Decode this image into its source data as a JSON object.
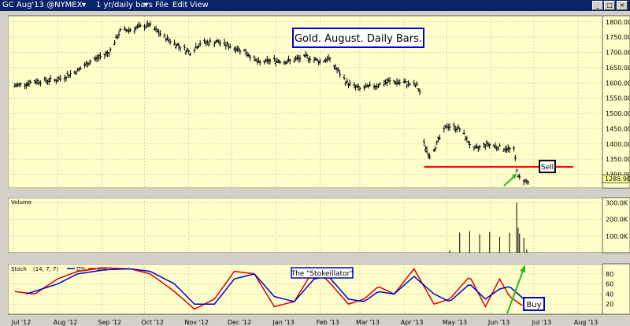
{
  "window": {
    "symbol": "GC Aug'13 @NYMEX",
    "period": "1 yr/daily bars",
    "menu": [
      "File",
      "Edit",
      "View"
    ]
  },
  "colors": {
    "panel_bg": "#ffffcc",
    "grid": "#c9c6a6",
    "price_bars": "#000000",
    "support_line": "#ff0000",
    "arrow": "#22bb22",
    "stoch_k": "#dd0000",
    "stoch_d": "#0000cc",
    "annotation_border": "#0000cc",
    "price_tag_bg": "#ffff99"
  },
  "chart_data": [
    {
      "type": "line",
      "subtype": "ohlc-bars",
      "title": "Gold. August. Daily Bars.",
      "x_tick_labels": [
        "Jul '12",
        "Aug '12",
        "Sep '12",
        "Oct '12",
        "Nov '12",
        "Dec '12",
        "Jan '13",
        "Feb '13",
        "Mar '13",
        "Apr '13",
        "May '13",
        "Jun '13",
        "Jul '13",
        "Aug '13"
      ],
      "y_tick_labels": [
        "1800.00",
        "1750.00",
        "1700.00",
        "1650.00",
        "1600.00",
        "1550.00",
        "1500.00",
        "1450.00",
        "1400.00",
        "1350.00",
        "1300.00"
      ],
      "ylim": [
        1255,
        1820
      ],
      "last_price_label": "1285.90",
      "series": [
        {
          "x": [
            "2012-07-02",
            "2012-07-16",
            "2012-08-01",
            "2012-08-15",
            "2012-08-24",
            "2012-09-06",
            "2012-09-14",
            "2012-09-21",
            "2012-10-04",
            "2012-10-15",
            "2012-10-22",
            "2012-11-02",
            "2012-11-09",
            "2012-11-21",
            "2012-12-03",
            "2012-12-10",
            "2012-12-20",
            "2012-12-31",
            "2013-01-09",
            "2013-01-23",
            "2013-02-01",
            "2013-02-07",
            "2013-02-20",
            "2013-03-01",
            "2013-03-11",
            "2013-03-22",
            "2013-04-01",
            "2013-04-10",
            "2013-04-12",
            "2013-04-15",
            "2013-04-19",
            "2013-05-01",
            "2013-05-10",
            "2013-05-20",
            "2013-05-29",
            "2013-06-06",
            "2013-06-17",
            "2013-06-20",
            "2013-06-27"
          ],
          "values": [
            1590,
            1605,
            1610,
            1640,
            1670,
            1700,
            1770,
            1775,
            1790,
            1750,
            1730,
            1700,
            1730,
            1735,
            1715,
            1705,
            1665,
            1675,
            1670,
            1685,
            1670,
            1680,
            1600,
            1580,
            1590,
            1605,
            1600,
            1590,
            1570,
            1400,
            1360,
            1460,
            1450,
            1380,
            1400,
            1390,
            1380,
            1290,
            1275
          ]
        }
      ],
      "annotations": [
        {
          "text": "Sell",
          "kind": "boxed-label"
        },
        {
          "text": "horizontal red support line near 1325"
        }
      ]
    },
    {
      "type": "bar",
      "title": "Volume",
      "y_tick_labels": [
        "300.0K",
        "200.0K",
        "100.0K"
      ],
      "ylim": [
        0,
        330000
      ],
      "series": [
        {
          "x": [
            "2013-05-03",
            "2013-05-10",
            "2013-05-17",
            "2013-05-24",
            "2013-05-31",
            "2013-06-07",
            "2013-06-14",
            "2013-06-19",
            "2013-06-20",
            "2013-06-21",
            "2013-06-24",
            "2013-06-26"
          ],
          "values": [
            15000,
            120000,
            130000,
            110000,
            125000,
            95000,
            120000,
            300000,
            150000,
            115000,
            90000,
            20000
          ]
        }
      ]
    },
    {
      "type": "line",
      "title": "Stoch",
      "params": "(14, 7, 7)",
      "legend_items": [
        "D%",
        "K%"
      ],
      "y_tick_labels": [
        "80",
        "60",
        "40",
        "20"
      ],
      "ylim": [
        0,
        100
      ],
      "annotation_title": "The \"Stokeillator\"",
      "buy_label": "Buy",
      "series": [
        {
          "name": "K%",
          "x": [
            "2012-07-02",
            "2012-07-16",
            "2012-08-01",
            "2012-08-15",
            "2012-09-03",
            "2012-09-21",
            "2012-10-05",
            "2012-10-22",
            "2012-11-05",
            "2012-11-19",
            "2012-12-03",
            "2012-12-17",
            "2012-12-31",
            "2013-01-14",
            "2013-01-28",
            "2013-02-07",
            "2013-02-21",
            "2013-03-04",
            "2013-03-14",
            "2013-03-25",
            "2013-04-08",
            "2013-04-22",
            "2013-05-03",
            "2013-05-17",
            "2013-05-28",
            "2013-06-07",
            "2013-06-14",
            "2013-06-24"
          ],
          "values": [
            45,
            40,
            70,
            85,
            92,
            90,
            80,
            45,
            10,
            30,
            85,
            80,
            15,
            25,
            90,
            65,
            20,
            30,
            55,
            40,
            90,
            20,
            30,
            75,
            15,
            70,
            35,
            15
          ]
        },
        {
          "name": "D%",
          "x": [
            "2012-07-10",
            "2012-08-01",
            "2012-08-15",
            "2012-09-03",
            "2012-09-21",
            "2012-10-05",
            "2012-10-22",
            "2012-11-05",
            "2012-11-19",
            "2012-12-03",
            "2012-12-17",
            "2012-12-31",
            "2013-01-14",
            "2013-01-28",
            "2013-02-07",
            "2013-02-21",
            "2013-03-04",
            "2013-03-14",
            "2013-03-25",
            "2013-04-08",
            "2013-04-22",
            "2013-05-03",
            "2013-05-17",
            "2013-05-28",
            "2013-06-07",
            "2013-06-14",
            "2013-06-26"
          ],
          "values": [
            40,
            60,
            80,
            88,
            90,
            85,
            60,
            20,
            20,
            70,
            80,
            35,
            25,
            70,
            75,
            30,
            25,
            45,
            40,
            75,
            40,
            25,
            60,
            30,
            50,
            55,
            25
          ]
        }
      ]
    }
  ]
}
